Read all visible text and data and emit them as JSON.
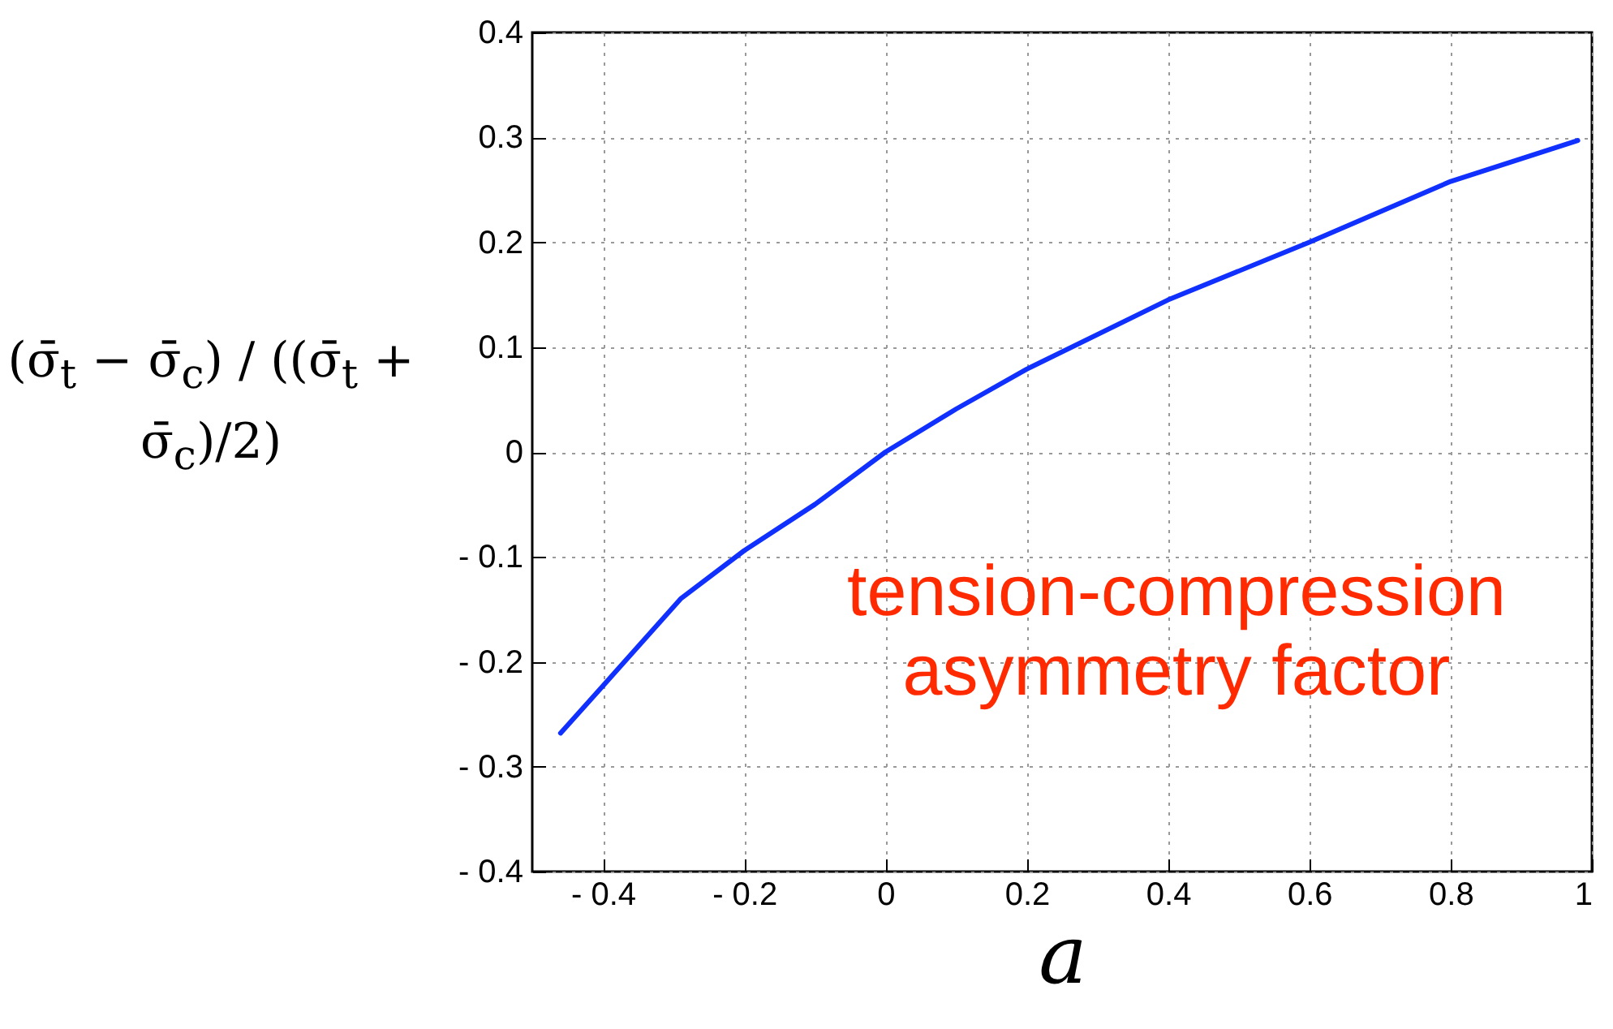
{
  "chart_data": {
    "type": "line",
    "xlabel": "a",
    "ylabel": "(σ̄$_{t}$ − σ̄$_{c}$) / ((σ̄$_{t}$ + σ̄$_{c}$)/2)",
    "annotations": [
      "tension-compression asymmetry factor"
    ],
    "x": [
      -0.46,
      -0.4,
      -0.29,
      -0.2,
      -0.1,
      0,
      0.1,
      0.2,
      0.4,
      0.6,
      0.8,
      0.98
    ],
    "series": [
      {
        "color": "#1030ff",
        "values": [
          -0.268,
          -0.223,
          -0.14,
          -0.094,
          -0.05,
          0,
          0.041,
          0.079,
          0.145,
          0.2,
          0.258,
          0.297
        ]
      }
    ],
    "xlim": [
      -0.5,
      1
    ],
    "ylim": [
      -0.4,
      0.4
    ],
    "xticks": [
      {
        "value": -0.4,
        "label": "- 0.4"
      },
      {
        "value": -0.2,
        "label": "- 0.2"
      },
      0,
      0.2,
      0.4,
      0.6,
      0.8,
      1
    ],
    "yticks": [
      {
        "value": -0.4,
        "label": "- 0.4"
      },
      {
        "value": -0.3,
        "label": "- 0.3"
      },
      {
        "value": -0.2,
        "label": "- 0.2"
      },
      {
        "value": -0.1,
        "label": "- 0.1"
      },
      0,
      0.1,
      0.2,
      0.3,
      0.4
    ],
    "grid": true
  }
}
